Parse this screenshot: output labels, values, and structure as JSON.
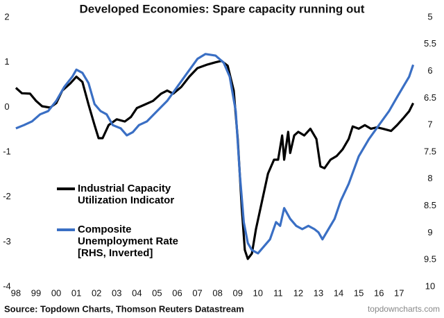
{
  "chart_data": {
    "type": "line",
    "title": "Developed Economies: Spare capacity running out",
    "source": "Source: Topdown Charts, Thomson Reuters Datastream",
    "watermark": "topdowncharts.com",
    "xlim": [
      1997.9,
      2017.85
    ],
    "xticks": [
      {
        "value": 1998,
        "label": "98"
      },
      {
        "value": 1999,
        "label": "99"
      },
      {
        "value": 2000,
        "label": "00"
      },
      {
        "value": 2001,
        "label": "01"
      },
      {
        "value": 2002,
        "label": "02"
      },
      {
        "value": 2003,
        "label": "03"
      },
      {
        "value": 2004,
        "label": "04"
      },
      {
        "value": 2005,
        "label": "05"
      },
      {
        "value": 2006,
        "label": "06"
      },
      {
        "value": 2007,
        "label": "07"
      },
      {
        "value": 2008,
        "label": "08"
      },
      {
        "value": 2009,
        "label": "09"
      },
      {
        "value": 2010,
        "label": "10"
      },
      {
        "value": 2011,
        "label": "11"
      },
      {
        "value": 2012,
        "label": "12"
      },
      {
        "value": 2013,
        "label": "13"
      },
      {
        "value": 2014,
        "label": "14"
      },
      {
        "value": 2015,
        "label": "15"
      },
      {
        "value": 2016,
        "label": "16"
      },
      {
        "value": 2017,
        "label": "17"
      }
    ],
    "ylim": [
      -4,
      2
    ],
    "yticks": [
      2,
      1,
      0,
      -1,
      -2,
      -3,
      -4
    ],
    "y2lim": [
      10,
      5
    ],
    "y2ticks": [
      5,
      5.5,
      6,
      6.5,
      7,
      7.5,
      8,
      8.5,
      9,
      9.5,
      10
    ],
    "series": [
      {
        "name": "Industrial Capacity Utilization Indicator",
        "color": "#000000",
        "x": [
          1998.0,
          1998.3,
          1998.7,
          1999.0,
          1999.3,
          1999.7,
          2000.0,
          2000.3,
          2000.7,
          2001.0,
          2001.3,
          2001.6,
          2001.9,
          2002.1,
          2002.3,
          2002.6,
          2003.0,
          2003.4,
          2003.7,
          2004.0,
          2004.4,
          2004.8,
          2005.2,
          2005.5,
          2005.8,
          2006.2,
          2006.6,
          2007.0,
          2007.5,
          2007.9,
          2008.2,
          2008.5,
          2008.8,
          2009.0,
          2009.2,
          2009.35,
          2009.5,
          2009.7,
          2009.9,
          2010.2,
          2010.5,
          2010.8,
          2011.0,
          2011.2,
          2011.3,
          2011.5,
          2011.6,
          2011.8,
          2012.0,
          2012.3,
          2012.6,
          2012.9,
          2013.1,
          2013.3,
          2013.6,
          2013.9,
          2014.2,
          2014.5,
          2014.7,
          2015.0,
          2015.3,
          2015.6,
          2015.9,
          2016.2,
          2016.6,
          2016.9,
          2017.2,
          2017.5,
          2017.7
        ],
        "values": [
          0.43,
          0.31,
          0.3,
          0.14,
          0.02,
          -0.01,
          0.09,
          0.37,
          0.53,
          0.68,
          0.56,
          0.06,
          -0.4,
          -0.69,
          -0.69,
          -0.4,
          -0.27,
          -0.32,
          -0.22,
          -0.02,
          0.06,
          0.14,
          0.3,
          0.37,
          0.3,
          0.45,
          0.68,
          0.87,
          0.95,
          1.0,
          1.03,
          0.92,
          0.37,
          -0.71,
          -2.25,
          -3.18,
          -3.38,
          -3.26,
          -2.72,
          -2.1,
          -1.48,
          -1.17,
          -1.17,
          -0.63,
          -1.17,
          -0.55,
          -1.02,
          -0.63,
          -0.55,
          -0.63,
          -0.48,
          -0.71,
          -1.32,
          -1.36,
          -1.17,
          -1.09,
          -0.94,
          -0.71,
          -0.43,
          -0.48,
          -0.4,
          -0.48,
          -0.45,
          -0.48,
          -0.53,
          -0.4,
          -0.25,
          -0.09,
          0.09
        ]
      },
      {
        "name": "Composite Unemployment Rate [RHS, Inverted]",
        "color": "#3a6fc4",
        "axis": "y2",
        "x": [
          1998.0,
          1998.4,
          1998.8,
          1999.2,
          1999.6,
          2000.0,
          2000.4,
          2000.8,
          2001.0,
          2001.3,
          2001.6,
          2001.9,
          2002.2,
          2002.5,
          2002.8,
          2003.2,
          2003.5,
          2003.8,
          2004.1,
          2004.5,
          2005.0,
          2005.5,
          2006.0,
          2006.5,
          2007.0,
          2007.4,
          2007.9,
          2008.3,
          2008.6,
          2008.9,
          2009.1,
          2009.3,
          2009.5,
          2009.7,
          2010.0,
          2010.3,
          2010.6,
          2010.9,
          2011.1,
          2011.3,
          2011.6,
          2011.9,
          2012.2,
          2012.5,
          2012.8,
          2013.0,
          2013.2,
          2013.5,
          2013.8,
          2014.1,
          2014.5,
          2015.0,
          2015.5,
          2016.0,
          2016.5,
          2016.9,
          2017.2,
          2017.5,
          2017.7
        ],
        "values": [
          7.06,
          7.0,
          6.93,
          6.8,
          6.74,
          6.55,
          6.29,
          6.1,
          5.97,
          6.03,
          6.22,
          6.61,
          6.74,
          6.8,
          7.0,
          7.06,
          7.19,
          7.13,
          7.0,
          6.93,
          6.74,
          6.55,
          6.29,
          6.03,
          5.77,
          5.68,
          5.71,
          5.84,
          6.1,
          6.74,
          7.9,
          8.8,
          9.19,
          9.32,
          9.38,
          9.25,
          9.12,
          8.8,
          8.87,
          8.54,
          8.74,
          8.87,
          8.93,
          8.87,
          8.93,
          8.99,
          9.12,
          8.93,
          8.74,
          8.41,
          8.09,
          7.58,
          7.26,
          7.0,
          6.74,
          6.48,
          6.29,
          6.1,
          5.88
        ]
      }
    ]
  }
}
